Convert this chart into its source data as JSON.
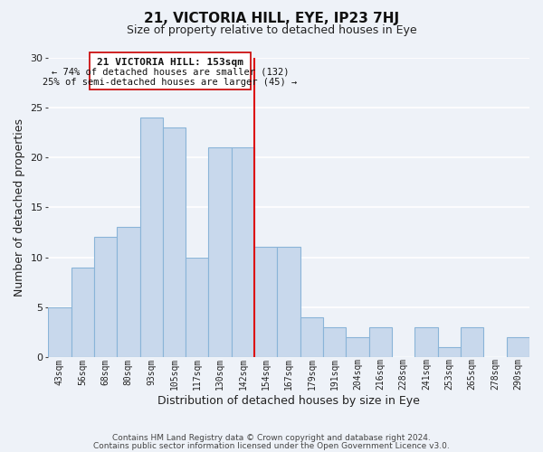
{
  "title": "21, VICTORIA HILL, EYE, IP23 7HJ",
  "subtitle": "Size of property relative to detached houses in Eye",
  "xlabel": "Distribution of detached houses by size in Eye",
  "ylabel": "Number of detached properties",
  "bar_color": "#c8d8ec",
  "bar_edge_color": "#8ab4d8",
  "bin_labels": [
    "43sqm",
    "56sqm",
    "68sqm",
    "80sqm",
    "93sqm",
    "105sqm",
    "117sqm",
    "130sqm",
    "142sqm",
    "154sqm",
    "167sqm",
    "179sqm",
    "191sqm",
    "204sqm",
    "216sqm",
    "228sqm",
    "241sqm",
    "253sqm",
    "265sqm",
    "278sqm",
    "290sqm"
  ],
  "bar_heights": [
    5,
    9,
    12,
    13,
    24,
    23,
    10,
    21,
    21,
    11,
    11,
    4,
    3,
    2,
    3,
    0,
    3,
    1,
    3,
    0,
    2
  ],
  "ylim": [
    0,
    30
  ],
  "yticks": [
    0,
    5,
    10,
    15,
    20,
    25,
    30
  ],
  "property_line_index": 9,
  "property_line_color": "#dd1111",
  "annotation_title": "21 VICTORIA HILL: 153sqm",
  "annotation_line1": "← 74% of detached houses are smaller (132)",
  "annotation_line2": "25% of semi-detached houses are larger (45) →",
  "annotation_box_edge": "#cc1111",
  "footnote1": "Contains HM Land Registry data © Crown copyright and database right 2024.",
  "footnote2": "Contains public sector information licensed under the Open Government Licence v3.0.",
  "background_color": "#eef2f8",
  "grid_color": "#ffffff"
}
